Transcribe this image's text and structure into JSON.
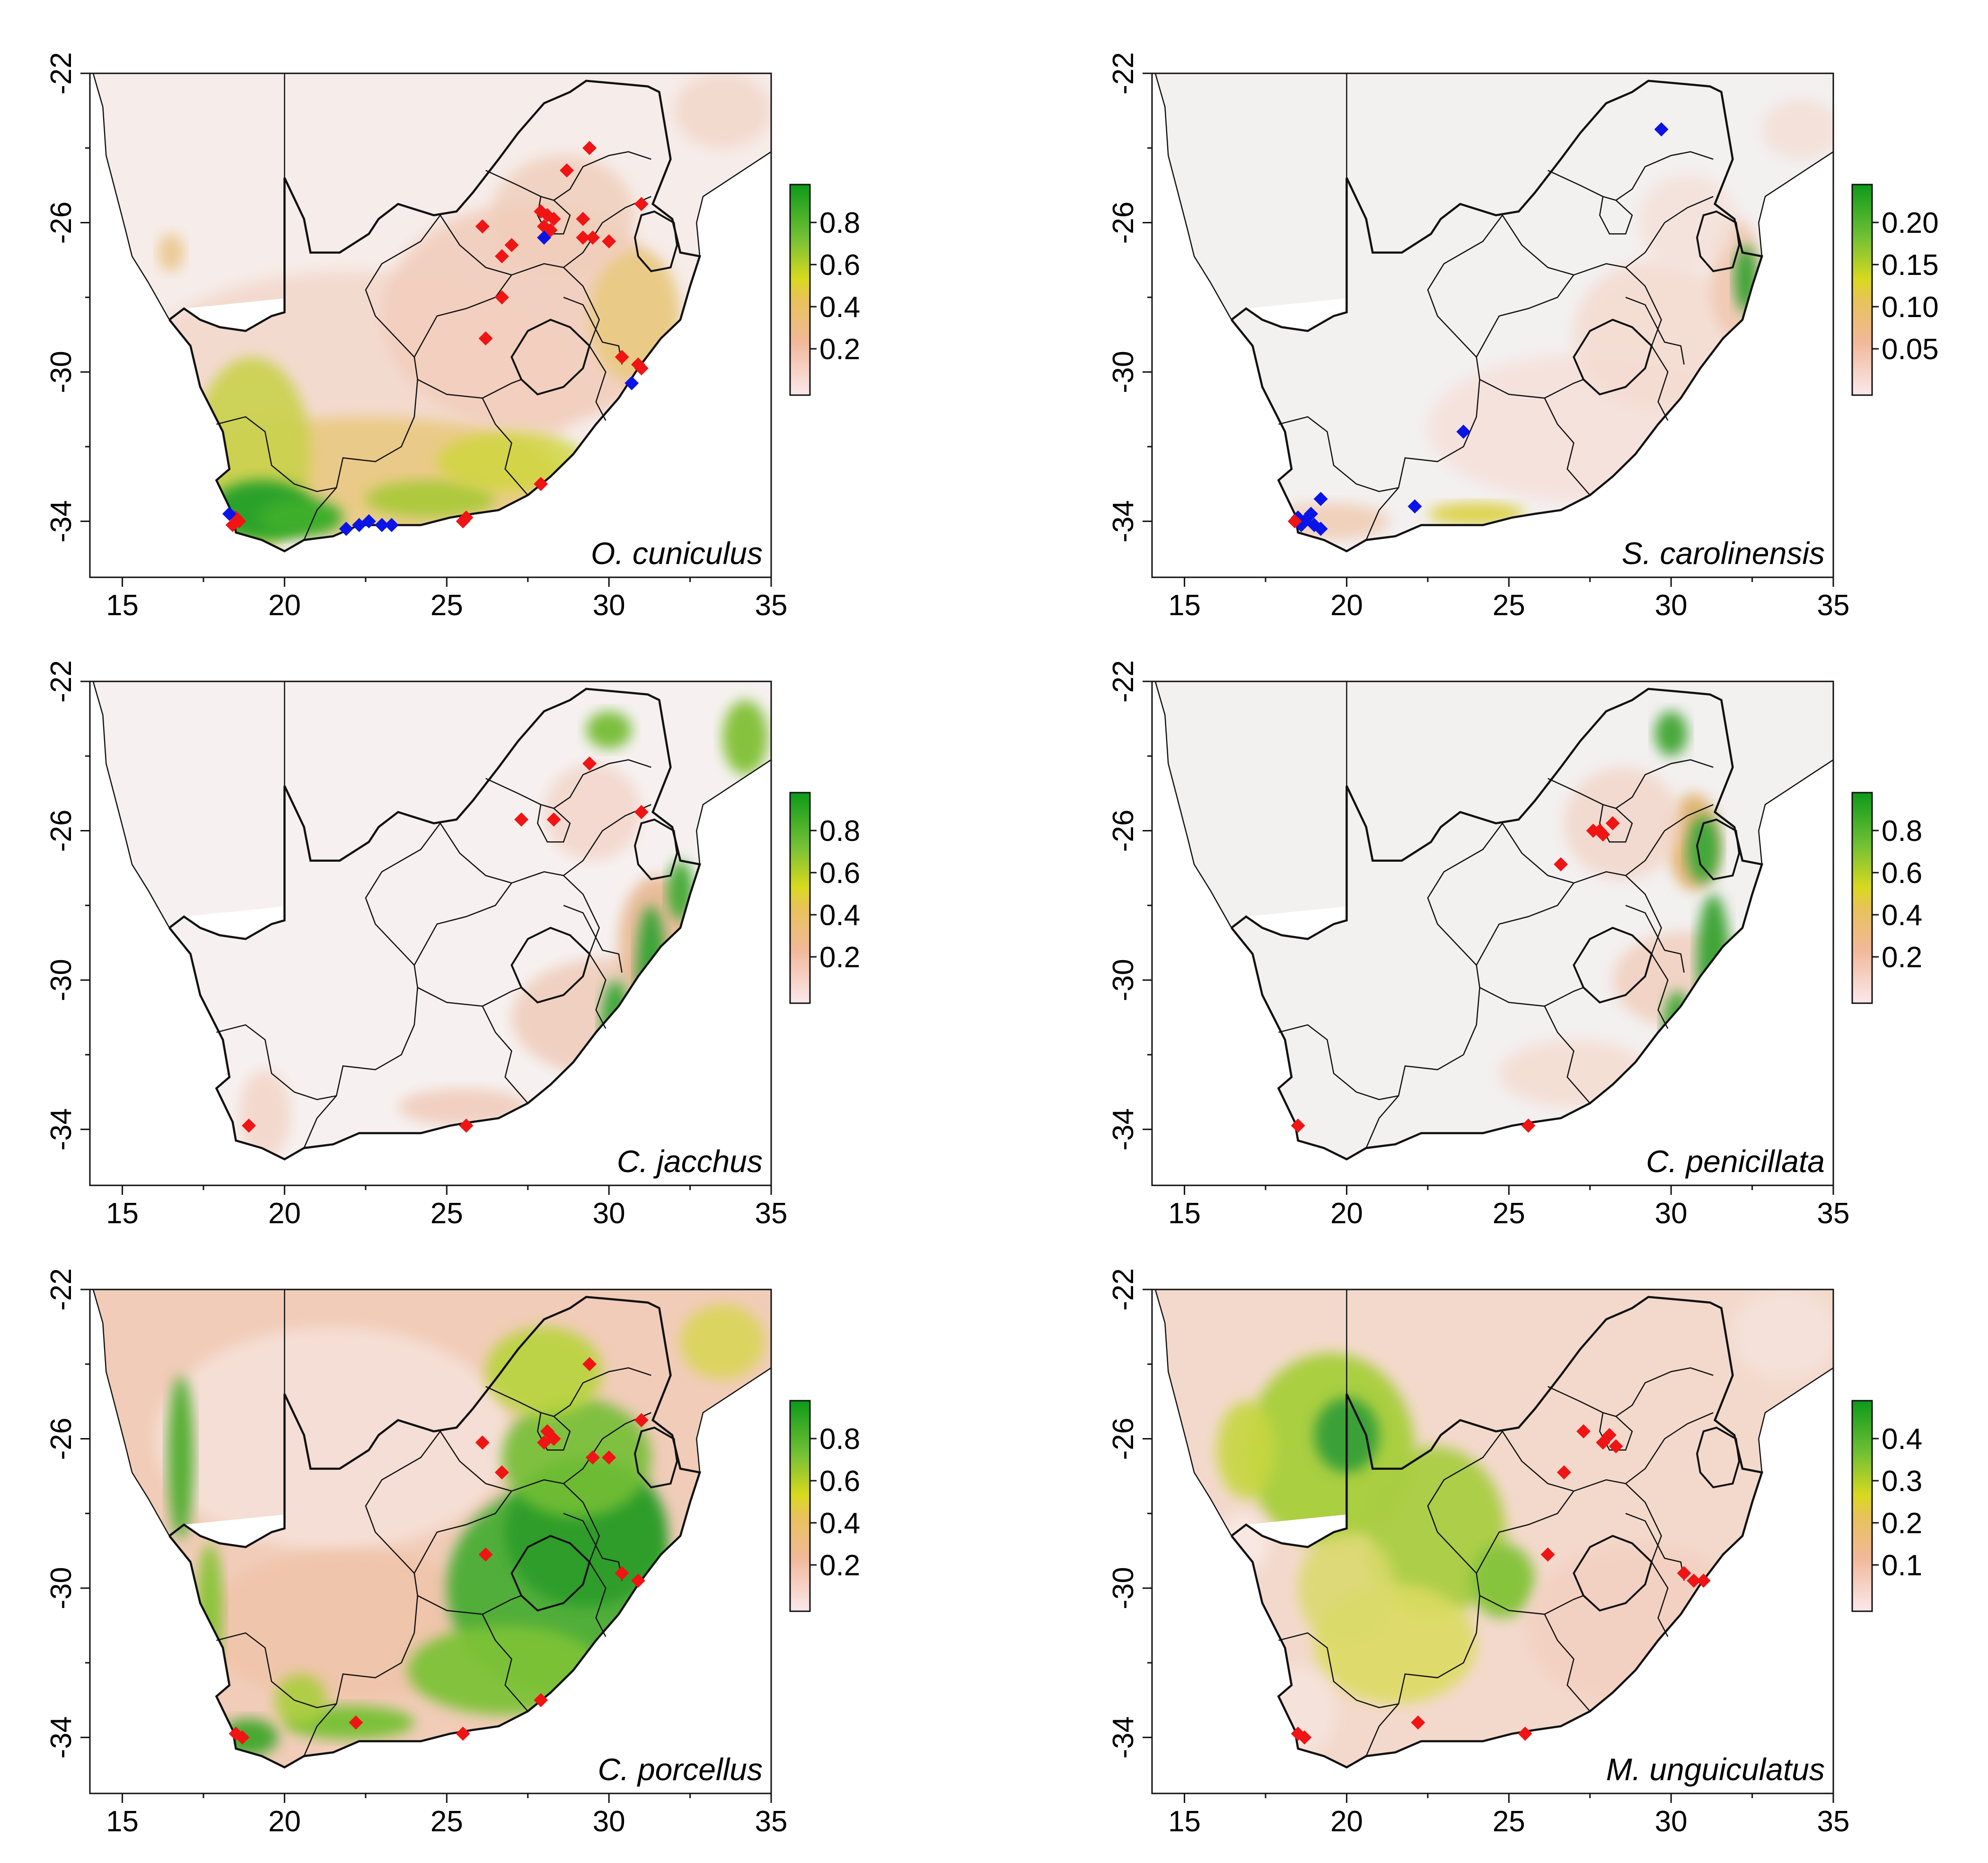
{
  "figure": {
    "x_ticks": [
      "15",
      "20",
      "25",
      "30",
      "35"
    ],
    "y_ticks": [
      "-22",
      "-26",
      "-30",
      "-34"
    ],
    "x_range": [
      14,
      35
    ],
    "y_range": [
      -35.5,
      -22
    ],
    "panels": [
      {
        "species": "O. cuniculus",
        "legend_ticks": [
          "0.8",
          "0.6",
          "0.4",
          "0.2"
        ],
        "suitability_style": "cuniculus",
        "points": [
          {
            "lon": 28.1,
            "lat": -25.8,
            "c": "red"
          },
          {
            "lon": 28.0,
            "lat": -26.1,
            "c": "red"
          },
          {
            "lon": 28.3,
            "lat": -25.9,
            "c": "red"
          },
          {
            "lon": 28.2,
            "lat": -26.2,
            "c": "red"
          },
          {
            "lon": 27.9,
            "lat": -25.7,
            "c": "red"
          },
          {
            "lon": 29.4,
            "lat": -24.0,
            "c": "red"
          },
          {
            "lon": 28.7,
            "lat": -24.6,
            "c": "red"
          },
          {
            "lon": 26.1,
            "lat": -26.1,
            "c": "red"
          },
          {
            "lon": 27.0,
            "lat": -26.6,
            "c": "red"
          },
          {
            "lon": 26.7,
            "lat": -26.9,
            "c": "red"
          },
          {
            "lon": 29.2,
            "lat": -26.4,
            "c": "red"
          },
          {
            "lon": 29.5,
            "lat": -26.4,
            "c": "red"
          },
          {
            "lon": 30.0,
            "lat": -26.5,
            "c": "red"
          },
          {
            "lon": 29.2,
            "lat": -25.9,
            "c": "red"
          },
          {
            "lon": 31.0,
            "lat": -25.5,
            "c": "red"
          },
          {
            "lon": 26.7,
            "lat": -28.0,
            "c": "red"
          },
          {
            "lon": 26.2,
            "lat": -29.1,
            "c": "red"
          },
          {
            "lon": 30.4,
            "lat": -29.6,
            "c": "red"
          },
          {
            "lon": 30.9,
            "lat": -29.8,
            "c": "red"
          },
          {
            "lon": 31.0,
            "lat": -29.9,
            "c": "red"
          },
          {
            "lon": 27.9,
            "lat": -33.0,
            "c": "red"
          },
          {
            "lon": 25.6,
            "lat": -33.9,
            "c": "red"
          },
          {
            "lon": 25.5,
            "lat": -34.0,
            "c": "red"
          },
          {
            "lon": 18.5,
            "lat": -33.9,
            "c": "red"
          },
          {
            "lon": 18.6,
            "lat": -34.0,
            "c": "red"
          },
          {
            "lon": 18.4,
            "lat": -34.1,
            "c": "red"
          },
          {
            "lon": 28.0,
            "lat": -26.4,
            "c": "blue"
          },
          {
            "lon": 30.7,
            "lat": -30.3,
            "c": "blue"
          },
          {
            "lon": 18.3,
            "lat": -33.8,
            "c": "blue"
          },
          {
            "lon": 21.9,
            "lat": -34.2,
            "c": "blue"
          },
          {
            "lon": 22.3,
            "lat": -34.1,
            "c": "blue"
          },
          {
            "lon": 22.6,
            "lat": -34.0,
            "c": "blue"
          },
          {
            "lon": 23.0,
            "lat": -34.1,
            "c": "blue"
          },
          {
            "lon": 23.3,
            "lat": -34.1,
            "c": "blue"
          }
        ]
      },
      {
        "species": "S. carolinensis",
        "legend_ticks": [
          "0.20",
          "0.15",
          "0.10",
          "0.05"
        ],
        "suitability_style": "carolinensis",
        "points": [
          {
            "lon": 29.7,
            "lat": -23.5,
            "c": "blue"
          },
          {
            "lon": 23.6,
            "lat": -31.6,
            "c": "blue"
          },
          {
            "lon": 22.1,
            "lat": -33.6,
            "c": "blue"
          },
          {
            "lon": 19.2,
            "lat": -33.4,
            "c": "blue"
          },
          {
            "lon": 18.5,
            "lat": -33.9,
            "c": "blue"
          },
          {
            "lon": 18.7,
            "lat": -34.0,
            "c": "blue"
          },
          {
            "lon": 18.9,
            "lat": -33.8,
            "c": "blue"
          },
          {
            "lon": 18.6,
            "lat": -34.1,
            "c": "blue"
          },
          {
            "lon": 19.0,
            "lat": -34.1,
            "c": "blue"
          },
          {
            "lon": 19.2,
            "lat": -34.2,
            "c": "blue"
          },
          {
            "lon": 18.4,
            "lat": -34.0,
            "c": "red"
          }
        ]
      },
      {
        "species": "C. jacchus",
        "legend_ticks": [
          "0.8",
          "0.6",
          "0.4",
          "0.2"
        ],
        "suitability_style": "jacchus",
        "points": [
          {
            "lon": 29.4,
            "lat": -24.2,
            "c": "red"
          },
          {
            "lon": 27.3,
            "lat": -25.7,
            "c": "red"
          },
          {
            "lon": 28.3,
            "lat": -25.7,
            "c": "red"
          },
          {
            "lon": 31.0,
            "lat": -25.5,
            "c": "red"
          },
          {
            "lon": 18.9,
            "lat": -33.9,
            "c": "red"
          },
          {
            "lon": 25.6,
            "lat": -33.9,
            "c": "red"
          }
        ]
      },
      {
        "species": "C. penicillata",
        "legend_ticks": [
          "0.8",
          "0.6",
          "0.4",
          "0.2"
        ],
        "suitability_style": "penicillata",
        "points": [
          {
            "lon": 27.6,
            "lat": -26.0,
            "c": "red"
          },
          {
            "lon": 27.9,
            "lat": -26.1,
            "c": "red"
          },
          {
            "lon": 28.2,
            "lat": -25.8,
            "c": "red"
          },
          {
            "lon": 27.8,
            "lat": -26.0,
            "c": "red"
          },
          {
            "lon": 26.6,
            "lat": -26.9,
            "c": "red"
          },
          {
            "lon": 18.5,
            "lat": -33.9,
            "c": "red"
          },
          {
            "lon": 25.6,
            "lat": -33.9,
            "c": "red"
          }
        ]
      },
      {
        "species": "C. porcellus",
        "legend_ticks": [
          "0.8",
          "0.6",
          "0.4",
          "0.2"
        ],
        "suitability_style": "porcellus",
        "points": [
          {
            "lon": 28.1,
            "lat": -25.8,
            "c": "red"
          },
          {
            "lon": 28.0,
            "lat": -26.1,
            "c": "red"
          },
          {
            "lon": 28.3,
            "lat": -26.0,
            "c": "red"
          },
          {
            "lon": 29.4,
            "lat": -24.0,
            "c": "red"
          },
          {
            "lon": 26.1,
            "lat": -26.1,
            "c": "red"
          },
          {
            "lon": 26.7,
            "lat": -26.9,
            "c": "red"
          },
          {
            "lon": 29.5,
            "lat": -26.5,
            "c": "red"
          },
          {
            "lon": 30.0,
            "lat": -26.5,
            "c": "red"
          },
          {
            "lon": 31.0,
            "lat": -25.5,
            "c": "red"
          },
          {
            "lon": 26.2,
            "lat": -29.1,
            "c": "red"
          },
          {
            "lon": 30.4,
            "lat": -29.6,
            "c": "red"
          },
          {
            "lon": 30.9,
            "lat": -29.8,
            "c": "red"
          },
          {
            "lon": 27.9,
            "lat": -33.0,
            "c": "red"
          },
          {
            "lon": 25.5,
            "lat": -33.9,
            "c": "red"
          },
          {
            "lon": 22.2,
            "lat": -33.6,
            "c": "red"
          },
          {
            "lon": 18.5,
            "lat": -33.9,
            "c": "red"
          },
          {
            "lon": 18.7,
            "lat": -34.0,
            "c": "red"
          }
        ]
      },
      {
        "species": "M. unguiculatus",
        "legend_ticks": [
          "0.4",
          "0.3",
          "0.2",
          "0.1"
        ],
        "suitability_style": "unguiculatus",
        "points": [
          {
            "lon": 28.1,
            "lat": -25.9,
            "c": "red"
          },
          {
            "lon": 27.9,
            "lat": -26.1,
            "c": "red"
          },
          {
            "lon": 28.3,
            "lat": -26.2,
            "c": "red"
          },
          {
            "lon": 27.3,
            "lat": -25.8,
            "c": "red"
          },
          {
            "lon": 26.7,
            "lat": -26.9,
            "c": "red"
          },
          {
            "lon": 26.2,
            "lat": -29.1,
            "c": "red"
          },
          {
            "lon": 30.4,
            "lat": -29.6,
            "c": "red"
          },
          {
            "lon": 30.7,
            "lat": -29.8,
            "c": "red"
          },
          {
            "lon": 31.0,
            "lat": -29.8,
            "c": "red"
          },
          {
            "lon": 22.2,
            "lat": -33.6,
            "c": "red"
          },
          {
            "lon": 25.5,
            "lat": -33.9,
            "c": "red"
          },
          {
            "lon": 18.5,
            "lat": -33.9,
            "c": "red"
          },
          {
            "lon": 18.7,
            "lat": -34.0,
            "c": "red"
          }
        ]
      }
    ]
  }
}
